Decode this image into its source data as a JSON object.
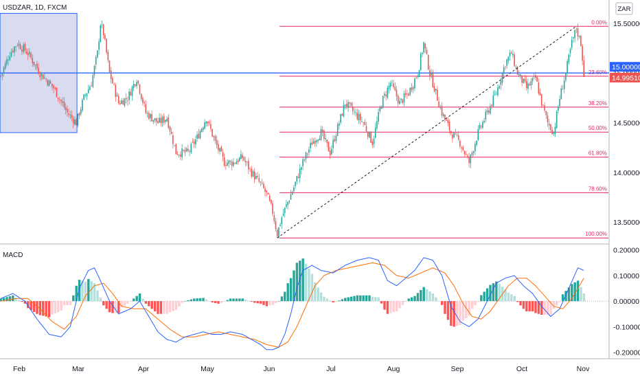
{
  "header": {
    "symbol": "USDZAR, 1D, FXCM",
    "currency_button": "ZAR"
  },
  "indicator": {
    "name": "MACD"
  },
  "colors": {
    "up": "#26a69a",
    "down": "#ef5350",
    "fib": "#e91e63",
    "hline": "#2962ff",
    "macd": "#2962ff",
    "signal": "#ff6d00",
    "hist_up_strong": "#26a69a",
    "hist_up_weak": "#b2dfdb",
    "hist_dn_strong": "#ff5252",
    "hist_dn_weak": "#ffcdd2"
  },
  "chart_data": [
    {
      "type": "candlestick",
      "name": "USDZAR price",
      "ylim": [
        13.3,
        15.7
      ],
      "y_ticks": [
        "15.50000",
        "15.00000",
        "14.50000",
        "14.00000",
        "13.50000"
      ],
      "x_ticks": [
        "Feb",
        "Mar",
        "Apr",
        "May",
        "Jun",
        "Jul",
        "Aug",
        "Sep",
        "Oct",
        "Nov"
      ],
      "horizontal_line": {
        "value": 15.0,
        "label": "15.00000"
      },
      "last_price": {
        "value": 14.9951,
        "label": "14.99510"
      },
      "fib_retracement": {
        "high": 15.47,
        "low": 13.34,
        "levels": [
          {
            "ratio": 0.0,
            "label": "0.00%"
          },
          {
            "ratio": 0.236,
            "label": "23.60%"
          },
          {
            "ratio": 0.382,
            "label": "38.20%"
          },
          {
            "ratio": 0.5,
            "label": "50.00%"
          },
          {
            "ratio": 0.618,
            "label": "61.80%"
          },
          {
            "ratio": 0.786,
            "label": "78.60%"
          },
          {
            "ratio": 1.0,
            "label": "100.00%"
          }
        ]
      },
      "close_path": [
        [
          0,
          14.97
        ],
        [
          6,
          15.2
        ],
        [
          11,
          15.3
        ],
        [
          18,
          15.2
        ],
        [
          26,
          15.0
        ],
        [
          35,
          14.85
        ],
        [
          44,
          14.6
        ],
        [
          50,
          14.5
        ],
        [
          55,
          14.75
        ],
        [
          60,
          14.9
        ],
        [
          64,
          15.2
        ],
        [
          66,
          15.5
        ],
        [
          68,
          15.4
        ],
        [
          72,
          15.0
        ],
        [
          78,
          14.7
        ],
        [
          84,
          14.75
        ],
        [
          90,
          14.95
        ],
        [
          96,
          14.6
        ],
        [
          104,
          14.5
        ],
        [
          110,
          14.55
        ],
        [
          116,
          14.2
        ],
        [
          124,
          14.2
        ],
        [
          130,
          14.35
        ],
        [
          136,
          14.55
        ],
        [
          142,
          14.3
        ],
        [
          148,
          14.1
        ],
        [
          154,
          14.1
        ],
        [
          160,
          14.15
        ],
        [
          166,
          14.0
        ],
        [
          172,
          13.88
        ],
        [
          176,
          13.78
        ],
        [
          180,
          13.6
        ],
        [
          183,
          13.38
        ],
        [
          186,
          13.55
        ],
        [
          190,
          13.7
        ],
        [
          194,
          13.85
        ],
        [
          200,
          14.1
        ],
        [
          206,
          14.3
        ],
        [
          212,
          14.4
        ],
        [
          218,
          14.2
        ],
        [
          224,
          14.5
        ],
        [
          228,
          14.7
        ],
        [
          234,
          14.6
        ],
        [
          240,
          14.5
        ],
        [
          246,
          14.3
        ],
        [
          252,
          14.7
        ],
        [
          258,
          14.9
        ],
        [
          264,
          14.7
        ],
        [
          270,
          14.8
        ],
        [
          276,
          15.0
        ],
        [
          280,
          15.3
        ],
        [
          284,
          15.0
        ],
        [
          288,
          14.8
        ],
        [
          292,
          14.6
        ],
        [
          298,
          14.4
        ],
        [
          304,
          14.3
        ],
        [
          310,
          14.1
        ],
        [
          316,
          14.4
        ],
        [
          322,
          14.6
        ],
        [
          328,
          14.8
        ],
        [
          334,
          15.1
        ],
        [
          338,
          15.2
        ],
        [
          342,
          15.0
        ],
        [
          348,
          14.85
        ],
        [
          354,
          14.95
        ],
        [
          358,
          14.7
        ],
        [
          362,
          14.5
        ],
        [
          366,
          14.4
        ],
        [
          370,
          14.75
        ],
        [
          374,
          15.0
        ],
        [
          378,
          15.3
        ],
        [
          381,
          15.45
        ],
        [
          384,
          15.3
        ],
        [
          386,
          14.995
        ]
      ],
      "marked_range": {
        "x_start": 0,
        "x_end": 50,
        "y_low": 14.4,
        "y_high": 15.6
      },
      "trend_line": {
        "from": [
          183,
          13.34
        ],
        "to": [
          381,
          15.47
        ]
      }
    },
    {
      "type": "line",
      "name": "MACD",
      "ylim": [
        -0.22,
        0.21
      ],
      "y_ticks": [
        {
          "value": 0.2,
          "label": "0.20000"
        },
        {
          "value": 0.1,
          "label": "0.10000"
        },
        {
          "value": 0.0,
          "label": "0.00000"
        },
        {
          "value": -0.1,
          "label": "-0.10000"
        },
        {
          "value": -0.2,
          "label": "-0.20000"
        }
      ],
      "macd_path": [
        [
          0,
          0.01
        ],
        [
          8,
          0.03
        ],
        [
          16,
          0.0
        ],
        [
          24,
          -0.07
        ],
        [
          32,
          -0.13
        ],
        [
          40,
          -0.14
        ],
        [
          46,
          -0.1
        ],
        [
          52,
          0.05
        ],
        [
          58,
          0.12
        ],
        [
          62,
          0.13
        ],
        [
          66,
          0.08
        ],
        [
          72,
          0.0
        ],
        [
          78,
          -0.05
        ],
        [
          86,
          -0.03
        ],
        [
          92,
          0.0
        ],
        [
          98,
          -0.06
        ],
        [
          104,
          -0.12
        ],
        [
          110,
          -0.15
        ],
        [
          116,
          -0.16
        ],
        [
          122,
          -0.14
        ],
        [
          128,
          -0.13
        ],
        [
          134,
          -0.12
        ],
        [
          140,
          -0.13
        ],
        [
          146,
          -0.13
        ],
        [
          152,
          -0.12
        ],
        [
          160,
          -0.13
        ],
        [
          166,
          -0.15
        ],
        [
          172,
          -0.17
        ],
        [
          176,
          -0.19
        ],
        [
          180,
          -0.19
        ],
        [
          184,
          -0.18
        ],
        [
          188,
          -0.13
        ],
        [
          192,
          -0.05
        ],
        [
          196,
          0.05
        ],
        [
          200,
          0.12
        ],
        [
          206,
          0.14
        ],
        [
          212,
          0.12
        ],
        [
          220,
          0.11
        ],
        [
          228,
          0.14
        ],
        [
          236,
          0.16
        ],
        [
          244,
          0.17
        ],
        [
          250,
          0.16
        ],
        [
          256,
          0.08
        ],
        [
          262,
          0.06
        ],
        [
          268,
          0.09
        ],
        [
          274,
          0.12
        ],
        [
          280,
          0.17
        ],
        [
          286,
          0.16
        ],
        [
          292,
          0.1
        ],
        [
          298,
          -0.02
        ],
        [
          304,
          -0.08
        ],
        [
          310,
          -0.1
        ],
        [
          316,
          -0.07
        ],
        [
          322,
          0.0
        ],
        [
          328,
          0.07
        ],
        [
          334,
          0.09
        ],
        [
          340,
          0.1
        ],
        [
          346,
          0.06
        ],
        [
          352,
          0.03
        ],
        [
          358,
          -0.02
        ],
        [
          364,
          -0.06
        ],
        [
          370,
          -0.03
        ],
        [
          376,
          0.05
        ],
        [
          382,
          0.13
        ],
        [
          386,
          0.12
        ]
      ],
      "signal_path": [
        [
          0,
          0.0
        ],
        [
          10,
          0.01
        ],
        [
          18,
          0.01
        ],
        [
          26,
          -0.03
        ],
        [
          34,
          -0.08
        ],
        [
          42,
          -0.11
        ],
        [
          50,
          -0.06
        ],
        [
          56,
          0.02
        ],
        [
          62,
          0.06
        ],
        [
          68,
          0.07
        ],
        [
          74,
          0.03
        ],
        [
          80,
          -0.02
        ],
        [
          88,
          -0.03
        ],
        [
          96,
          -0.03
        ],
        [
          104,
          -0.07
        ],
        [
          112,
          -0.11
        ],
        [
          120,
          -0.14
        ],
        [
          128,
          -0.14
        ],
        [
          136,
          -0.13
        ],
        [
          144,
          -0.12
        ],
        [
          152,
          -0.13
        ],
        [
          160,
          -0.14
        ],
        [
          168,
          -0.15
        ],
        [
          176,
          -0.17
        ],
        [
          184,
          -0.18
        ],
        [
          190,
          -0.16
        ],
        [
          196,
          -0.1
        ],
        [
          202,
          -0.02
        ],
        [
          208,
          0.06
        ],
        [
          214,
          0.1
        ],
        [
          222,
          0.12
        ],
        [
          230,
          0.13
        ],
        [
          238,
          0.14
        ],
        [
          246,
          0.15
        ],
        [
          254,
          0.14
        ],
        [
          262,
          0.1
        ],
        [
          270,
          0.09
        ],
        [
          278,
          0.11
        ],
        [
          286,
          0.13
        ],
        [
          294,
          0.11
        ],
        [
          300,
          0.06
        ],
        [
          306,
          -0.01
        ],
        [
          312,
          -0.06
        ],
        [
          318,
          -0.07
        ],
        [
          324,
          -0.04
        ],
        [
          330,
          0.01
        ],
        [
          336,
          0.06
        ],
        [
          342,
          0.09
        ],
        [
          348,
          0.09
        ],
        [
          354,
          0.06
        ],
        [
          360,
          0.02
        ],
        [
          366,
          -0.02
        ],
        [
          372,
          -0.03
        ],
        [
          378,
          0.01
        ],
        [
          386,
          0.09
        ]
      ]
    }
  ]
}
